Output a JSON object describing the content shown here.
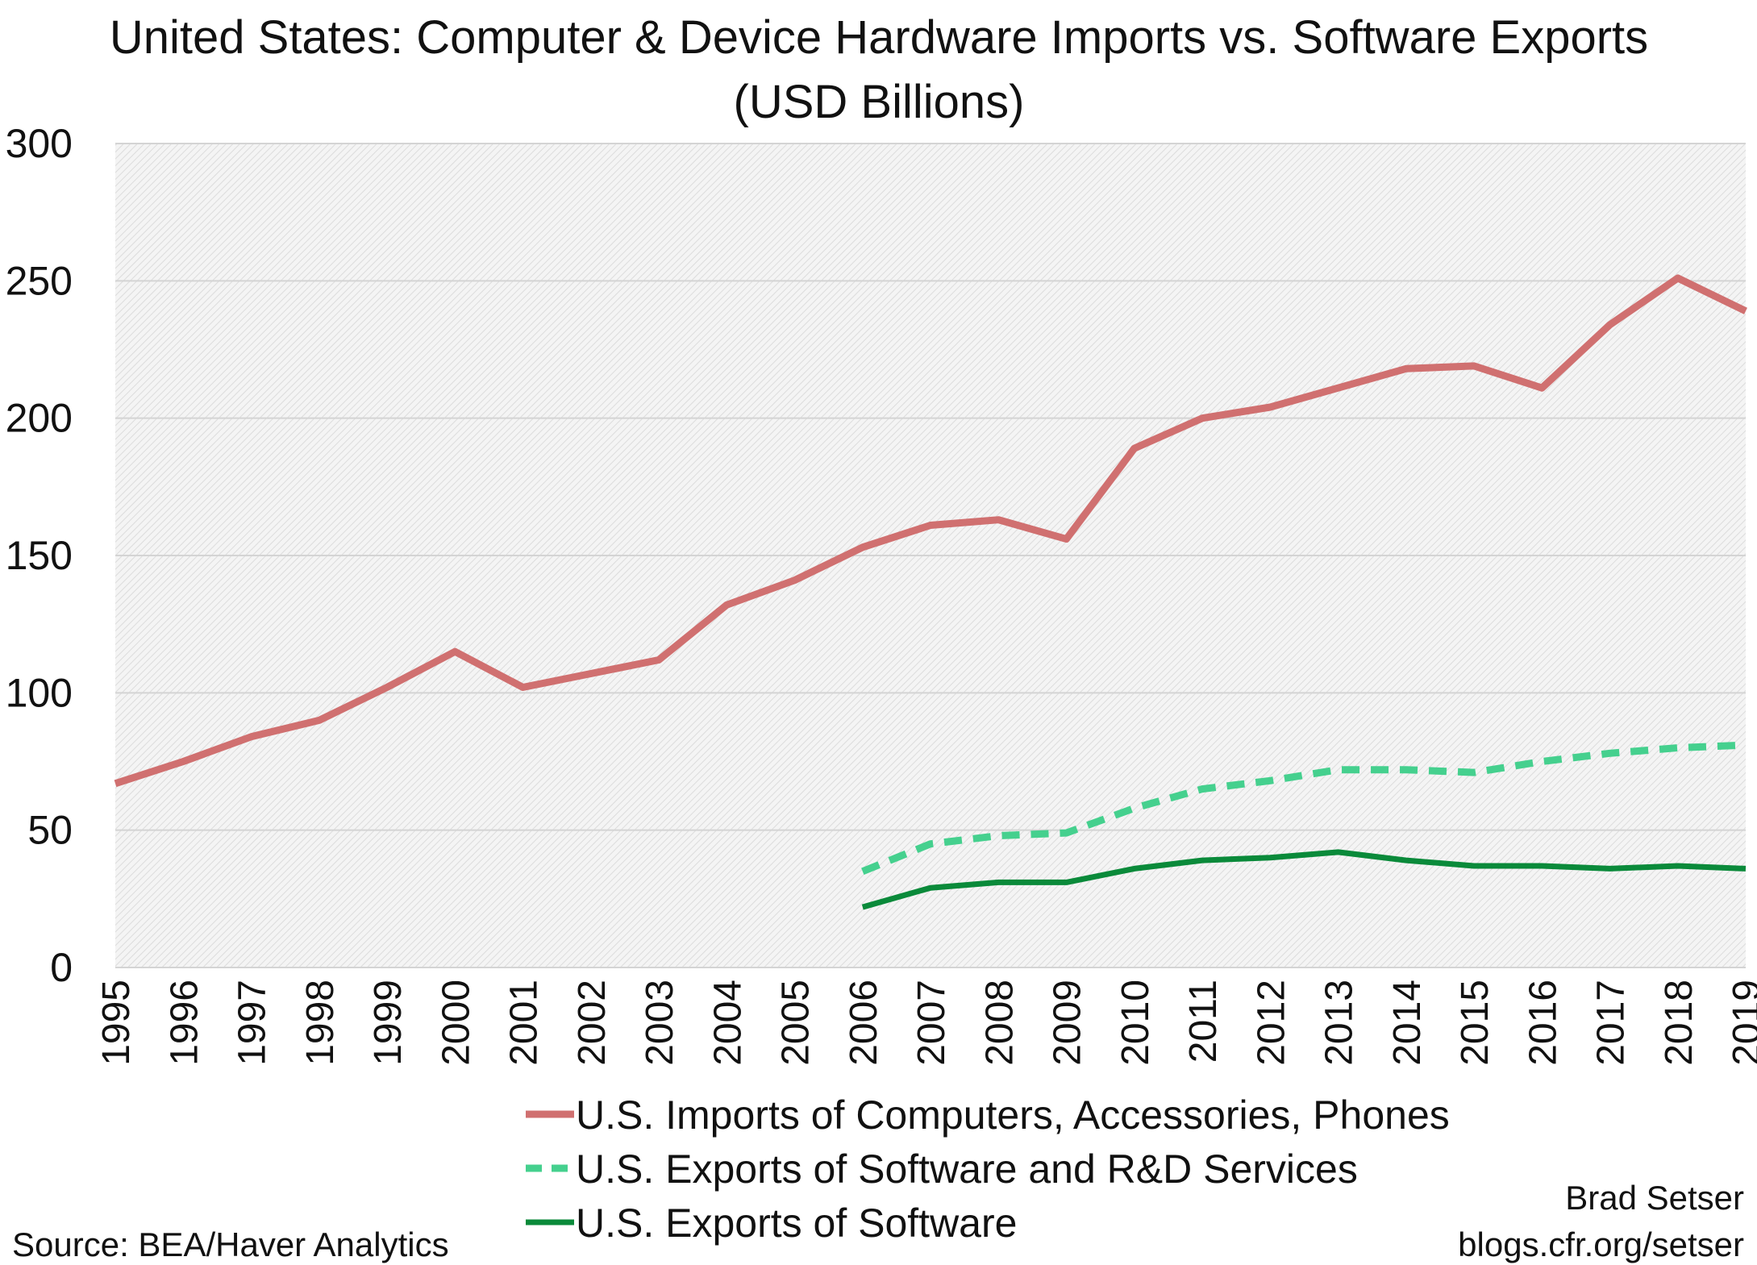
{
  "chart_data": {
    "type": "line",
    "title": "United States: Computer & Device Hardware Imports vs. Software Exports",
    "subtitle": "(USD Billions)",
    "xlabel": "",
    "ylabel": "",
    "ylim": [
      0,
      300
    ],
    "yticks": [
      0,
      50,
      100,
      150,
      200,
      250,
      300
    ],
    "grid": true,
    "legend_position": "bottom",
    "x": [
      1995,
      1996,
      1997,
      1998,
      1999,
      2000,
      2001,
      2002,
      2003,
      2004,
      2005,
      2006,
      2007,
      2008,
      2009,
      2010,
      2011,
      2012,
      2013,
      2014,
      2015,
      2016,
      2017,
      2018,
      2019
    ],
    "series": [
      {
        "name": "U.S. Imports of Computers, Accessories, Phones",
        "color": "#d07070",
        "style": "solid",
        "values": [
          67,
          75,
          84,
          90,
          102,
          115,
          102,
          107,
          112,
          132,
          141,
          153,
          161,
          163,
          156,
          189,
          200,
          204,
          211,
          218,
          219,
          211,
          234,
          251,
          239
        ]
      },
      {
        "name": "U.S. Exports of Software and R&D Services",
        "color": "#45d08e",
        "style": "dashed",
        "values": [
          null,
          null,
          null,
          null,
          null,
          null,
          null,
          null,
          null,
          null,
          null,
          35,
          45,
          48,
          49,
          58,
          65,
          68,
          72,
          72,
          71,
          75,
          78,
          80,
          81
        ]
      },
      {
        "name": "U.S. Exports of Software",
        "color": "#0a8a3a",
        "style": "solid",
        "values": [
          null,
          null,
          null,
          null,
          null,
          null,
          null,
          null,
          null,
          null,
          null,
          22,
          29,
          31,
          31,
          36,
          39,
          40,
          42,
          39,
          37,
          37,
          36,
          37,
          36
        ]
      }
    ]
  },
  "source": "Source: BEA/Haver Analytics",
  "author": "Brad Setser",
  "website": "blogs.cfr.org/setser"
}
